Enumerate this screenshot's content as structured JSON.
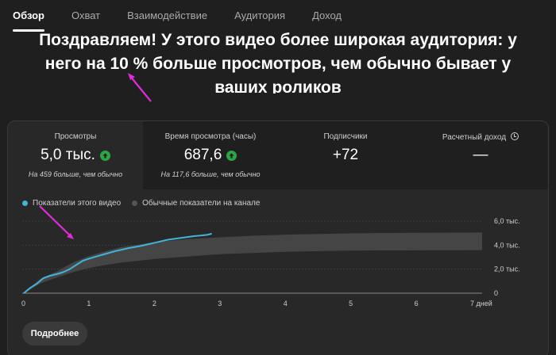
{
  "tabs": [
    {
      "label": "Обзор",
      "active": true
    },
    {
      "label": "Охват",
      "active": false
    },
    {
      "label": "Взаимодействие",
      "active": false
    },
    {
      "label": "Аудитория",
      "active": false
    },
    {
      "label": "Доход",
      "active": false
    }
  ],
  "headline": "Поздравляем! У этого видео более широкая аудитория: у него на 10 % больше просмотров, чем обычно бывает у ваших роликов",
  "metrics": [
    {
      "label": "Просмотры",
      "value": "5,0 тыс.",
      "note": "На 459 больше, чем обычно",
      "trend_icon": "arrow-up-icon"
    },
    {
      "label": "Время просмотра (часы)",
      "value": "687,6",
      "note": "На 117,6 больше, чем обычно",
      "trend_icon": "arrow-up-icon"
    },
    {
      "label": "Подписчики",
      "value": "+72",
      "note": ""
    },
    {
      "label": "Расчетный доход",
      "value": "—",
      "note": "",
      "info_icon": "clock-icon"
    }
  ],
  "legend": {
    "this_video": "Показатели этого видео",
    "typical": "Обычные показатели на канале"
  },
  "colors": {
    "accent_line": "#41b4d9",
    "band": "#4a4a4a",
    "up_badge": "#2ba640",
    "annotation_arrow": "#e22bd9"
  },
  "chart_data": {
    "type": "line",
    "x_ticks": [
      "0",
      "1",
      "2",
      "3",
      "4",
      "5",
      "6",
      "7 дней"
    ],
    "y_ticks": [
      "0",
      "2,0 тыс.",
      "4,0 тыс.",
      "6,0 тыс."
    ],
    "xlim": [
      0,
      7
    ],
    "ylim": [
      0,
      6000
    ],
    "series": [
      {
        "name": "Показатели этого видео",
        "x": [
          0,
          0.1,
          0.2,
          0.3,
          0.4,
          0.5,
          0.6,
          0.7,
          0.8,
          0.9,
          1.0,
          1.2,
          1.4,
          1.6,
          1.8,
          2.0,
          2.2,
          2.4,
          2.6,
          2.8,
          2.87
        ],
        "y": [
          0,
          450,
          800,
          1250,
          1450,
          1580,
          1750,
          2000,
          2350,
          2700,
          2880,
          3200,
          3500,
          3750,
          3950,
          4200,
          4450,
          4600,
          4750,
          4850,
          4950
        ]
      }
    ],
    "band": {
      "name": "Обычные показатели на канале",
      "x": [
        0,
        0.25,
        0.5,
        0.75,
        1.0,
        1.25,
        1.5,
        1.75,
        2.0,
        2.5,
        3.0,
        3.5,
        4.0,
        4.5,
        5.0,
        5.5,
        6.0,
        6.5,
        7.0
      ],
      "low": [
        0,
        800,
        1300,
        1750,
        2100,
        2350,
        2550,
        2700,
        2850,
        3050,
        3250,
        3350,
        3450,
        3500,
        3550,
        3560,
        3570,
        3580,
        3590
      ],
      "high": [
        0,
        1200,
        1800,
        2550,
        3100,
        3500,
        3850,
        4050,
        4250,
        4500,
        4650,
        4780,
        4870,
        4930,
        4980,
        5010,
        5030,
        5040,
        5050
      ]
    }
  },
  "more_button": "Подробнее"
}
